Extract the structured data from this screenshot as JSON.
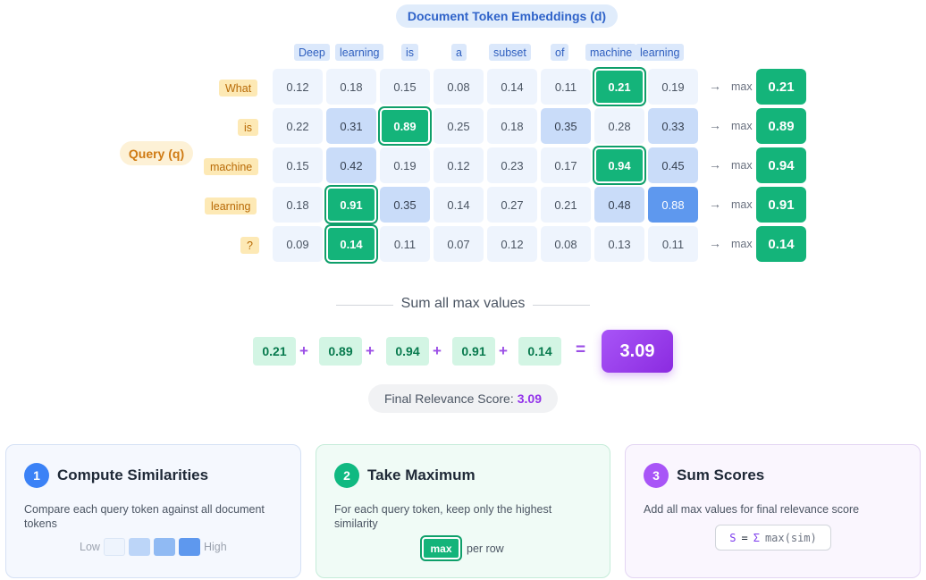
{
  "doc_title": "Document Token Embeddings (d)",
  "doc_tokens": [
    "Deep",
    "learning",
    "is",
    "a",
    "subset",
    "of",
    "machine",
    "learning"
  ],
  "query_label": "Query (q)",
  "query_tokens": [
    "What",
    "is",
    "machine",
    "learning",
    "?"
  ],
  "matrix": [
    [
      "0.12",
      "0.18",
      "0.15",
      "0.08",
      "0.14",
      "0.11",
      "0.21",
      "0.19"
    ],
    [
      "0.22",
      "0.31",
      "0.89",
      "0.25",
      "0.18",
      "0.35",
      "0.28",
      "0.33"
    ],
    [
      "0.15",
      "0.42",
      "0.19",
      "0.12",
      "0.23",
      "0.17",
      "0.94",
      "0.45"
    ],
    [
      "0.18",
      "0.91",
      "0.35",
      "0.14",
      "0.27",
      "0.21",
      "0.48",
      "0.88"
    ],
    [
      "0.09",
      "0.14",
      "0.11",
      "0.07",
      "0.12",
      "0.08",
      "0.13",
      "0.11"
    ]
  ],
  "max_label": "max",
  "arrow_glyph": "→",
  "row_max": [
    "0.21",
    "0.89",
    "0.94",
    "0.91",
    "0.14"
  ],
  "sum": {
    "title": "Sum all max values",
    "terms": [
      "0.21",
      "0.89",
      "0.94",
      "0.91",
      "0.14"
    ],
    "plus": "+",
    "equals": "=",
    "total": "3.09"
  },
  "final": {
    "label": "Final Relevance Score:",
    "value": "3.09"
  },
  "steps": [
    {
      "num": "1",
      "title": "Compute Similarities",
      "desc": "Compare each query token against all document tokens"
    },
    {
      "num": "2",
      "title": "Take Maximum",
      "desc": "For each query token, keep only the highest similarity"
    },
    {
      "num": "3",
      "title": "Sum Scores",
      "desc": "Add all max values for final relevance score"
    }
  ],
  "legend": {
    "low": "Low",
    "high": "High"
  },
  "max_badge": {
    "label": "max",
    "text": "per row"
  },
  "formula": {
    "lhs": "S",
    "eq": "=",
    "sigma": "Σ",
    "rhs": "max(sim)"
  },
  "colors": {
    "max_cell": "#14b47a",
    "high_cell": "#5e98ee",
    "mid_cell": "#c9dcf9",
    "low_cell": "#eef4fd",
    "total": "#a855f7"
  }
}
